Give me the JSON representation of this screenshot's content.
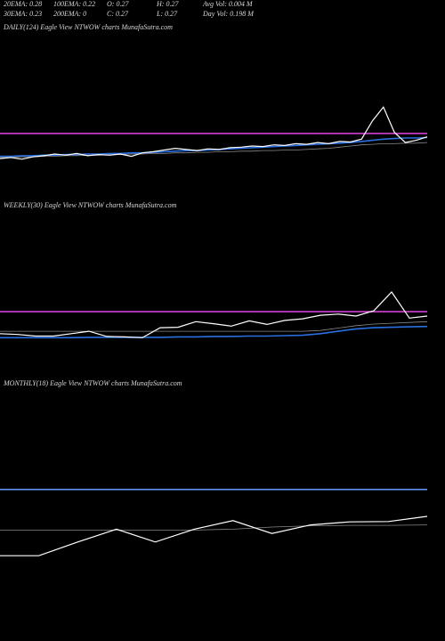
{
  "header": {
    "rows": [
      [
        "20EMA: 0.28",
        "100EMA: 0.22",
        "O: 0.27",
        "H: 0.27",
        "Avg Vol: 0.004  M"
      ],
      [
        "30EMA: 0.23",
        "200EMA: 0",
        "C: 0.27",
        "L: 0.27",
        "Day Vol: 0.198  M"
      ]
    ]
  },
  "chart_data": [
    {
      "type": "line",
      "title": "DAILY(124) Eagle   View  NTWOW charts MunafaSutra.com",
      "ylim": [
        0.2,
        0.34
      ],
      "series": [
        {
          "color": "#d040d0",
          "values": [
            0.278,
            0.278,
            0.278,
            0.278,
            0.278,
            0.278,
            0.278,
            0.278,
            0.278,
            0.278,
            0.278,
            0.278,
            0.278,
            0.278,
            0.278,
            0.278,
            0.278,
            0.278,
            0.278,
            0.278,
            0.278,
            0.278,
            0.278,
            0.278,
            0.278,
            0.278,
            0.278,
            0.278,
            0.278,
            0.278,
            0.278,
            0.278,
            0.278,
            0.278,
            0.278,
            0.278,
            0.278,
            0.278,
            0.278,
            0.278
          ]
        },
        {
          "color": "#888888",
          "values": [
            0.236,
            0.236,
            0.237,
            0.237,
            0.238,
            0.238,
            0.239,
            0.239,
            0.24,
            0.24,
            0.241,
            0.241,
            0.242,
            0.242,
            0.243,
            0.243,
            0.244,
            0.244,
            0.245,
            0.245,
            0.246,
            0.246,
            0.247,
            0.247,
            0.248,
            0.248,
            0.249,
            0.249,
            0.25,
            0.251,
            0.252,
            0.254,
            0.256,
            0.258,
            0.259,
            0.26,
            0.26,
            0.261,
            0.261,
            0.262
          ]
        },
        {
          "color": "#2a6fe0",
          "values": [
            0.238,
            0.238,
            0.239,
            0.239,
            0.24,
            0.24,
            0.241,
            0.241,
            0.242,
            0.242,
            0.243,
            0.243,
            0.244,
            0.244,
            0.245,
            0.246,
            0.247,
            0.248,
            0.248,
            0.249,
            0.25,
            0.251,
            0.252,
            0.253,
            0.254,
            0.255,
            0.256,
            0.257,
            0.258,
            0.259,
            0.26,
            0.261,
            0.262,
            0.264,
            0.266,
            0.268,
            0.269,
            0.27,
            0.27,
            0.271
          ]
        },
        {
          "color": "#ffffff",
          "values": [
            0.234,
            0.236,
            0.233,
            0.237,
            0.239,
            0.242,
            0.24,
            0.243,
            0.239,
            0.241,
            0.24,
            0.242,
            0.238,
            0.244,
            0.246,
            0.249,
            0.252,
            0.25,
            0.248,
            0.251,
            0.25,
            0.253,
            0.254,
            0.256,
            0.255,
            0.258,
            0.257,
            0.26,
            0.259,
            0.262,
            0.26,
            0.264,
            0.263,
            0.268,
            0.3,
            0.324,
            0.28,
            0.262,
            0.266,
            0.272
          ]
        }
      ]
    },
    {
      "type": "line",
      "title": "WEEKLY(30) Eagle   View  NTWOW charts MunafaSutra.com",
      "ylim": [
        0.15,
        0.35
      ],
      "series": [
        {
          "color": "#d040d0",
          "values": [
            0.261,
            0.261,
            0.261,
            0.261,
            0.261,
            0.261,
            0.261,
            0.261,
            0.261,
            0.261,
            0.261,
            0.261,
            0.261,
            0.261,
            0.261,
            0.261,
            0.261,
            0.261,
            0.261,
            0.261,
            0.261,
            0.261,
            0.261,
            0.261,
            0.261
          ]
        },
        {
          "color": "#888888",
          "values": [
            0.212,
            0.212,
            0.212,
            0.212,
            0.212,
            0.212,
            0.212,
            0.212,
            0.212,
            0.212,
            0.212,
            0.212,
            0.212,
            0.212,
            0.212,
            0.212,
            0.212,
            0.212,
            0.214,
            0.22,
            0.226,
            0.23,
            0.232,
            0.234,
            0.236
          ]
        },
        {
          "color": "#2a6fe0",
          "values": [
            0.196,
            0.196,
            0.196,
            0.196,
            0.196,
            0.197,
            0.197,
            0.197,
            0.197,
            0.197,
            0.198,
            0.198,
            0.199,
            0.199,
            0.2,
            0.2,
            0.201,
            0.202,
            0.206,
            0.212,
            0.218,
            0.221,
            0.222,
            0.223,
            0.224
          ]
        },
        {
          "color": "#ffffff",
          "values": [
            0.206,
            0.204,
            0.2,
            0.2,
            0.206,
            0.212,
            0.199,
            0.198,
            0.196,
            0.221,
            0.222,
            0.236,
            0.231,
            0.225,
            0.238,
            0.229,
            0.239,
            0.243,
            0.252,
            0.255,
            0.25,
            0.263,
            0.31,
            0.245,
            0.25
          ]
        }
      ]
    },
    {
      "type": "line",
      "title": "MONTHLY(18) Eagle   View  NTWOW charts MunafaSutra.com",
      "ylim": [
        0.1,
        0.35
      ],
      "series": [
        {
          "color": "#5a8fe8",
          "values": [
            0.288,
            0.288,
            0.288,
            0.288,
            0.288,
            0.288,
            0.288,
            0.288,
            0.288,
            0.288,
            0.288,
            0.288
          ]
        },
        {
          "color": "#888888",
          "values": [
            0.193,
            0.193,
            0.193,
            0.193,
            0.193,
            0.193,
            0.195,
            0.2,
            0.203,
            0.204,
            0.204,
            0.205
          ]
        },
        {
          "color": "#ffffff",
          "values": [
            0.133,
            0.133,
            0.165,
            0.195,
            0.165,
            0.195,
            0.215,
            0.185,
            0.205,
            0.212,
            0.213,
            0.225
          ]
        }
      ]
    }
  ]
}
